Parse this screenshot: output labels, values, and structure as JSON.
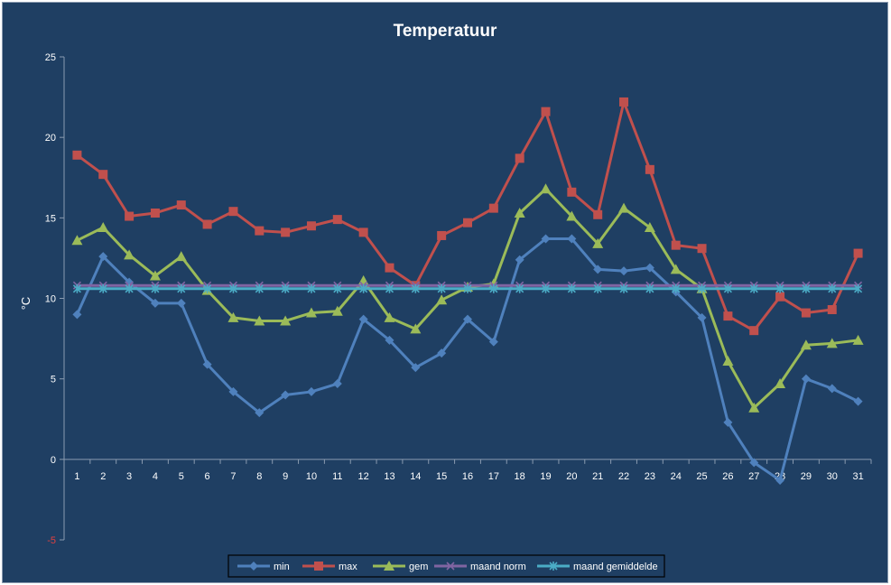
{
  "chart_data": {
    "type": "line",
    "title": "Temperatuur",
    "ylabel": "°C",
    "xlabel": "",
    "ylim": [
      -5,
      25
    ],
    "yticks": [
      25,
      20,
      15,
      10,
      5,
      0,
      -5
    ],
    "x": [
      1,
      2,
      3,
      4,
      5,
      6,
      7,
      8,
      9,
      10,
      11,
      12,
      13,
      14,
      15,
      16,
      17,
      18,
      19,
      20,
      21,
      22,
      23,
      24,
      25,
      26,
      27,
      28,
      29,
      30,
      31
    ],
    "legend_position": "bottom",
    "grid": false,
    "series": [
      {
        "name": "min",
        "color": "#4f81bd",
        "marker": "diamond",
        "values": [
          9.0,
          12.6,
          11.0,
          9.7,
          9.7,
          5.9,
          4.2,
          2.9,
          4.0,
          4.2,
          4.7,
          8.7,
          7.4,
          5.7,
          6.6,
          8.7,
          7.3,
          12.4,
          13.7,
          13.7,
          11.8,
          11.7,
          11.9,
          10.4,
          8.8,
          2.3,
          -0.2,
          -1.3,
          5.0,
          4.4,
          3.6
        ]
      },
      {
        "name": "max",
        "color": "#c0504d",
        "marker": "square",
        "values": [
          18.9,
          17.7,
          15.1,
          15.3,
          15.8,
          14.6,
          15.4,
          14.2,
          14.1,
          14.5,
          14.9,
          14.1,
          11.9,
          10.8,
          13.9,
          14.7,
          15.6,
          18.7,
          21.6,
          16.6,
          15.2,
          22.2,
          18.0,
          13.3,
          13.1,
          8.9,
          8.0,
          10.1,
          9.1,
          9.3,
          12.8
        ]
      },
      {
        "name": "gem",
        "color": "#9bbb59",
        "marker": "triangle",
        "values": [
          13.6,
          14.4,
          12.7,
          11.4,
          12.6,
          10.5,
          8.8,
          8.6,
          8.6,
          9.1,
          9.2,
          11.1,
          8.8,
          8.1,
          9.9,
          10.7,
          10.9,
          15.3,
          16.8,
          15.1,
          13.4,
          15.6,
          14.4,
          11.8,
          10.6,
          6.1,
          3.2,
          4.7,
          7.1,
          7.2,
          7.4
        ]
      },
      {
        "name": "maand norm",
        "color": "#8064a2",
        "marker": "x",
        "values": [
          10.8,
          10.8,
          10.8,
          10.8,
          10.8,
          10.8,
          10.8,
          10.8,
          10.8,
          10.8,
          10.8,
          10.8,
          10.8,
          10.8,
          10.8,
          10.8,
          10.8,
          10.8,
          10.8,
          10.8,
          10.8,
          10.8,
          10.8,
          10.8,
          10.8,
          10.8,
          10.8,
          10.8,
          10.8,
          10.8,
          10.8
        ]
      },
      {
        "name": "maand gemiddelde",
        "color": "#4bacc6",
        "marker": "star",
        "values": [
          10.6,
          10.6,
          10.6,
          10.6,
          10.6,
          10.6,
          10.6,
          10.6,
          10.6,
          10.6,
          10.6,
          10.6,
          10.6,
          10.6,
          10.6,
          10.6,
          10.6,
          10.6,
          10.6,
          10.6,
          10.6,
          10.6,
          10.6,
          10.6,
          10.6,
          10.6,
          10.6,
          10.6,
          10.6,
          10.6,
          10.6
        ]
      }
    ]
  }
}
